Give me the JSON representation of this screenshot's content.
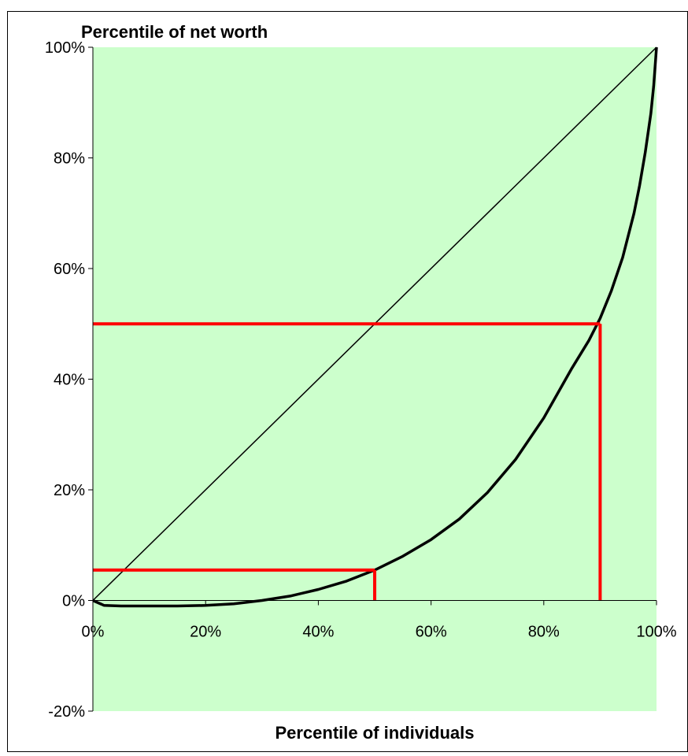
{
  "chart_data": {
    "type": "line",
    "title": "",
    "xlabel": "Percentile of individuals",
    "ylabel": "Percentile of net worth",
    "xlim": [
      0,
      100
    ],
    "ylim": [
      -20,
      100
    ],
    "x_ticks": [
      "0%",
      "20%",
      "40%",
      "60%",
      "80%",
      "100%"
    ],
    "x_tick_values": [
      0,
      20,
      40,
      60,
      80,
      100
    ],
    "y_ticks": [
      "-20%",
      "0%",
      "20%",
      "40%",
      "60%",
      "80%",
      "100%"
    ],
    "y_tick_values": [
      -20,
      0,
      20,
      40,
      60,
      80,
      100
    ],
    "plot_background": "#ccffcc",
    "grid": false,
    "legend": "none",
    "series": [
      {
        "kind": "equality-line",
        "color": "#000000",
        "x": [
          0,
          100
        ],
        "y": [
          0,
          100
        ]
      },
      {
        "kind": "lorenz-curve",
        "color": "#000000",
        "x": [
          0,
          2,
          5,
          10,
          15,
          20,
          25,
          30,
          35,
          40,
          45,
          50,
          55,
          60,
          65,
          70,
          75,
          80,
          85,
          88,
          90,
          92,
          94,
          96,
          97,
          98,
          99,
          99.5,
          100
        ],
        "y": [
          0,
          -0.9,
          -1.0,
          -1.0,
          -1.0,
          -0.9,
          -0.6,
          0.0,
          0.8,
          2.0,
          3.5,
          5.5,
          8.0,
          11.0,
          14.7,
          19.5,
          25.5,
          33.0,
          42.0,
          47.0,
          51.0,
          56.0,
          62.0,
          70.0,
          75.0,
          81.0,
          88.0,
          93.0,
          100.0
        ]
      }
    ],
    "reference_lines": [
      {
        "color": "#ff0000",
        "x": 50,
        "y": 5.5
      },
      {
        "color": "#ff0000",
        "x": 90,
        "y": 50
      }
    ]
  }
}
